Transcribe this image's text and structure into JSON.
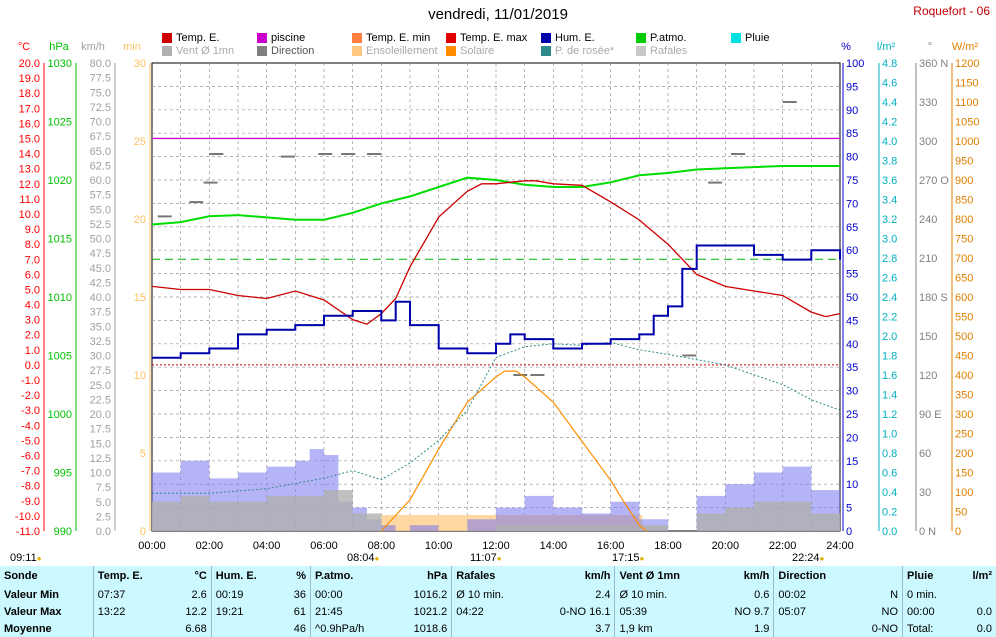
{
  "title": "vendredi, 11/01/2019",
  "station": "Roquefort - 06",
  "legend": [
    {
      "label": "Temp. E.",
      "color": "#cc0000"
    },
    {
      "label": "piscine",
      "color": "#cc00cc"
    },
    {
      "label": "Temp. E. min",
      "color": "#ff8040"
    },
    {
      "label": "Temp. E. max",
      "color": "#e00000"
    },
    {
      "label": "Hum. E.",
      "color": "#0000aa"
    },
    {
      "label": "P.atmo.",
      "color": "#00cc00"
    },
    {
      "label": "Pluie",
      "color": "#00e0e0"
    },
    {
      "label": "Vent Ø 1mn",
      "color": "#b0b0b0"
    },
    {
      "label": "Direction",
      "color": "#808080"
    },
    {
      "label": "Ensoleillement",
      "color": "#ffc880"
    },
    {
      "label": "Solaire",
      "color": "#ff8c00"
    },
    {
      "label": "P. de rosée*",
      "color": "#2e8b8b"
    },
    {
      "label": "Rafales",
      "color": "#c8c8c8"
    }
  ],
  "axis_units": {
    "temp": "°C",
    "hpa": "hPa",
    "kmh": "km/h",
    "min": "min",
    "pct": "%",
    "rain": "l/m²",
    "deg": "°",
    "wm2": "W/m²"
  },
  "axis_ticks": {
    "temp": [
      "20.0",
      "19.0",
      "18.0",
      "17.0",
      "16.0",
      "15.0",
      "14.0",
      "13.0",
      "12.0",
      "11.0",
      "10.0",
      "9.0",
      "8.0",
      "7.0",
      "6.0",
      "5.0",
      "4.0",
      "3.0",
      "2.0",
      "1.0",
      "0.0",
      "-1.0",
      "-2.0",
      "-3.0",
      "-4.0",
      "-5.0",
      "-6.0",
      "-7.0",
      "-8.0",
      "-9.0",
      "-10.0",
      "-11.0"
    ],
    "hpa": [
      "1030",
      "1025",
      "1020",
      "1015",
      "1010",
      "1005",
      "1000",
      "995",
      "990"
    ],
    "kmh": [
      "80.0",
      "77.5",
      "75.0",
      "72.5",
      "70.0",
      "67.5",
      "65.0",
      "62.5",
      "60.0",
      "57.5",
      "55.0",
      "52.5",
      "50.0",
      "47.5",
      "45.0",
      "42.5",
      "40.0",
      "37.5",
      "35.0",
      "32.5",
      "30.0",
      "27.5",
      "25.0",
      "22.5",
      "20.0",
      "17.5",
      "15.0",
      "12.5",
      "10.0",
      "7.5",
      "5.0",
      "2.5",
      "0.0"
    ],
    "min": [
      "30",
      "25",
      "20",
      "15",
      "10",
      "5",
      "0"
    ],
    "pct": [
      "100",
      "95",
      "90",
      "85",
      "80",
      "75",
      "70",
      "65",
      "60",
      "55",
      "50",
      "45",
      "40",
      "35",
      "30",
      "25",
      "20",
      "15",
      "10",
      "5",
      "0"
    ],
    "rain": [
      "4.8",
      "4.6",
      "4.4",
      "4.2",
      "4.0",
      "3.8",
      "3.6",
      "3.4",
      "3.2",
      "3.0",
      "2.8",
      "2.6",
      "2.4",
      "2.2",
      "2.0",
      "1.8",
      "1.6",
      "1.4",
      "1.2",
      "1.0",
      "0.8",
      "0.6",
      "0.4",
      "0.2",
      "0.0"
    ],
    "deg": [
      "360 N",
      "330",
      "300",
      "270 O",
      "240",
      "210",
      "180 S",
      "150",
      "120",
      "90  E",
      "60",
      "30",
      "0 N"
    ],
    "wm2": [
      "1200",
      "1150",
      "1100",
      "1050",
      "1000",
      "950",
      "900",
      "850",
      "800",
      "750",
      "700",
      "650",
      "600",
      "550",
      "500",
      "450",
      "400",
      "350",
      "300",
      "250",
      "200",
      "150",
      "100",
      "50",
      "0"
    ]
  },
  "time_labels": [
    "00:00",
    "02:00",
    "04:00",
    "06:00",
    "08:00",
    "10:00",
    "12:00",
    "14:00",
    "16:00",
    "18:00",
    "20:00",
    "22:00",
    "24:00"
  ],
  "events": [
    {
      "time": "09:11",
      "label": "09:11"
    },
    {
      "time": "08:04",
      "label": "08:04"
    },
    {
      "time": "11:07",
      "label": "11:07"
    },
    {
      "time": "17:15",
      "label": "17:15"
    },
    {
      "time": "22:24",
      "label": "22:24"
    }
  ],
  "chart_data": {
    "type": "line",
    "x_range_hours": [
      0,
      24
    ],
    "ylim_temp": [
      -11,
      20
    ],
    "ylim_pressure": [
      990,
      1030
    ],
    "ylim_humidity": [
      0,
      100
    ],
    "ylim_wind": [
      0,
      80
    ],
    "ylim_solar": [
      0,
      1200
    ],
    "piscine": 15.0,
    "reference_line_temp": 7.0,
    "series": [
      {
        "name": "Temp. E.",
        "unit": "°C",
        "x": [
          0,
          1,
          2,
          3,
          4,
          5,
          6,
          7,
          7.5,
          8,
          8.5,
          9,
          10,
          11,
          11.5,
          12,
          12.5,
          13,
          13.4,
          14,
          15,
          16,
          17,
          18,
          19,
          20,
          21,
          22,
          23,
          23.5,
          24
        ],
        "y": [
          5.2,
          5.0,
          5.0,
          4.6,
          4.4,
          4.9,
          4.3,
          3.0,
          2.7,
          3.4,
          4.4,
          6.5,
          9.8,
          11.5,
          12.0,
          12.0,
          12.1,
          12.2,
          12.2,
          12.0,
          11.9,
          10.8,
          9.6,
          8.0,
          6.0,
          5.2,
          4.9,
          4.6,
          3.5,
          3.2,
          3.4
        ]
      },
      {
        "name": "Hum. E.",
        "unit": "%",
        "x": [
          0,
          1,
          2,
          3,
          4,
          5,
          6,
          7,
          8,
          8.5,
          9,
          10,
          11,
          12,
          12.5,
          13,
          14,
          15,
          16,
          17,
          17.5,
          18,
          18.5,
          19,
          20,
          21,
          22,
          23,
          24
        ],
        "y": [
          37,
          38,
          39,
          42,
          43,
          44,
          46,
          47,
          45,
          49,
          44,
          39,
          38,
          40,
          42,
          41,
          39,
          40,
          41,
          42,
          46,
          48,
          56,
          61,
          61,
          59,
          58,
          60,
          58
        ]
      },
      {
        "name": "P.atmo.",
        "unit": "hPa",
        "x": [
          0,
          1,
          2,
          3,
          4,
          5,
          6,
          7,
          8,
          9,
          10,
          11,
          12,
          13,
          14,
          15,
          16,
          17,
          18,
          19,
          20,
          21,
          22,
          23,
          24
        ],
        "y": [
          1016.2,
          1016.4,
          1016.9,
          1017.0,
          1016.8,
          1016.6,
          1016.6,
          1017.2,
          1018.0,
          1018.6,
          1019.4,
          1020.2,
          1020.0,
          1019.6,
          1019.4,
          1019.4,
          1019.8,
          1020.4,
          1020.6,
          1020.9,
          1021.0,
          1021.1,
          1021.2,
          1021.2,
          1021.2
        ]
      },
      {
        "name": "Solaire",
        "unit": "W/m²",
        "x": [
          8,
          9,
          10,
          11,
          12,
          12.3,
          12.7,
          13,
          14,
          15,
          16,
          16.5,
          17,
          17.25
        ],
        "y": [
          0,
          80,
          210,
          330,
          395,
          410,
          410,
          395,
          330,
          230,
          130,
          70,
          15,
          0
        ]
      },
      {
        "name": "P. de rosée*",
        "unit": "°C",
        "x": [
          0,
          2,
          4,
          6,
          7,
          8,
          9,
          10,
          11,
          12,
          13,
          14,
          15,
          16,
          17,
          18,
          20,
          22,
          23,
          24
        ],
        "y": [
          -8.5,
          -8.5,
          -8.2,
          -7.5,
          -7.0,
          -7.6,
          -6.5,
          -5.0,
          -3.0,
          0.5,
          1.2,
          1.4,
          1.3,
          1.5,
          1.0,
          0.7,
          0.0,
          -1.3,
          -2.3,
          -3.0
        ]
      },
      {
        "name": "Rafales",
        "unit": "km/h",
        "x": [
          0,
          1,
          2,
          3,
          4,
          5,
          5.5,
          6,
          6.5,
          7,
          7.5,
          8,
          8.5,
          9,
          10,
          11,
          12,
          13,
          14,
          15,
          16,
          17,
          18,
          19,
          20,
          21,
          22,
          23,
          24
        ],
        "y": [
          10,
          12,
          9,
          10,
          11,
          12,
          14,
          13,
          5,
          4,
          2,
          1,
          0,
          1,
          0,
          2,
          4,
          6,
          4,
          3,
          5,
          2,
          0,
          6,
          8,
          10,
          11,
          7,
          3
        ]
      },
      {
        "name": "Vent Ø 1mn",
        "unit": "km/h",
        "x": [
          0,
          1,
          2,
          3,
          4,
          5,
          6,
          7,
          8,
          10,
          12,
          14,
          16,
          18,
          19,
          20,
          21,
          22,
          23,
          24
        ],
        "y": [
          5,
          6,
          5,
          5,
          6,
          6,
          7,
          3,
          0,
          0,
          1,
          1,
          1,
          0,
          3,
          4,
          5,
          5,
          3,
          1
        ]
      },
      {
        "name": "Direction",
        "unit": "°",
        "x": [
          0.2,
          1.3,
          1.8,
          2.0,
          4.5,
          5.8,
          6.6,
          7.5,
          12.6,
          13.2,
          18.5,
          19.4,
          20.2,
          22.0
        ],
        "y": [
          242,
          253,
          268,
          290,
          288,
          290,
          290,
          290,
          120,
          120,
          135,
          268,
          290,
          330
        ]
      }
    ],
    "sunshine_minutes": {
      "start_hour": 8.0,
      "end_hour": 17.1,
      "value": 1
    }
  },
  "stats": {
    "headers": [
      "Sonde",
      "Temp. E.",
      "°C",
      "Hum. E.",
      "%",
      "P.atmo.",
      "hPa",
      "Rafales",
      "km/h",
      "Vent Ø 1mn",
      "km/h",
      "Direction",
      "",
      "Pluie",
      "l/m²"
    ],
    "rows": [
      {
        "label": "Valeur Min",
        "temp_t": "07:37",
        "temp_v": "2.6",
        "hum_t": "00:19",
        "hum_v": "36",
        "p_t": "00:00",
        "p_v": "1016.2",
        "raf_t": "Ø 10 min.",
        "raf_v": "2.4",
        "vent_t": "Ø 10 min.",
        "vent_v": "0.6",
        "dir_t": "00:02",
        "dir_v": "N",
        "pluie_t": "0 min.",
        "pluie_v": ""
      },
      {
        "label": "Valeur Max",
        "temp_t": "13:22",
        "temp_v": "12.2",
        "hum_t": "19:21",
        "hum_v": "61",
        "p_t": "21:45",
        "p_v": "1021.2",
        "raf_t": "04:22",
        "raf_v": "0-NO 16.1",
        "vent_t": "05:39",
        "vent_v": "NO 9.7",
        "dir_t": "05:07",
        "dir_v": "NO",
        "pluie_t": "00:00",
        "pluie_v": "0.0"
      },
      {
        "label": "Moyenne",
        "temp_t": "",
        "temp_v": "6.68",
        "hum_t": "",
        "hum_v": "46",
        "p_t": "^0.9hPa/h",
        "p_v": "1018.6",
        "raf_t": "",
        "raf_v": "3.7",
        "vent_t": "1,9 km",
        "vent_v": "1.9",
        "dir_t": "",
        "dir_v": "0-NO",
        "pluie_t": "Total:",
        "pluie_v": "0.0"
      }
    ]
  }
}
